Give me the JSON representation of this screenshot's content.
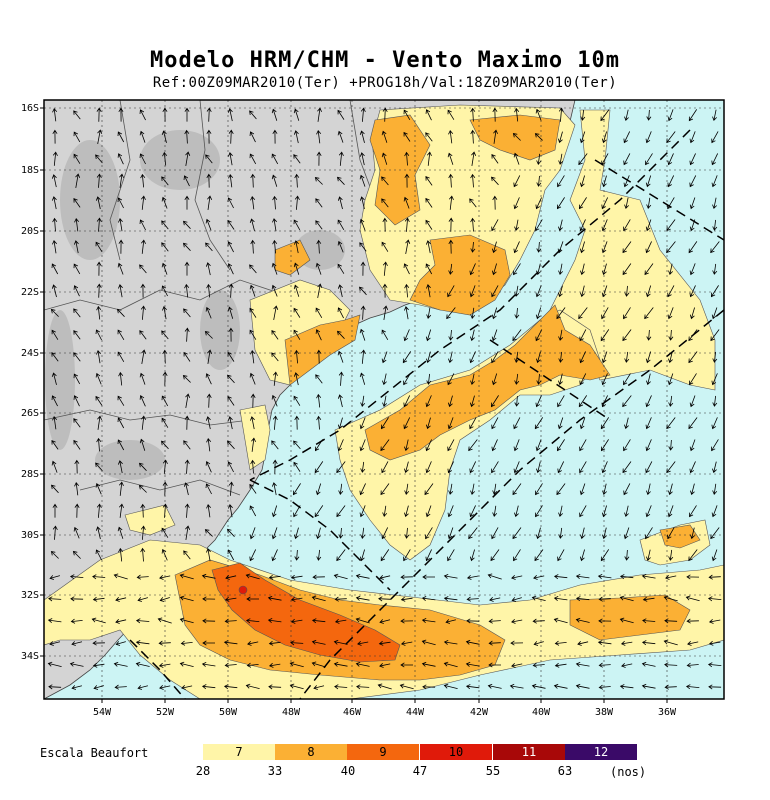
{
  "title": "Modelo HRM/CHM - Vento Maximo 10m",
  "subtitle": "Ref:00Z09MAR2010(Ter) +PROG18h/Val:18Z09MAR2010(Ter)",
  "lat_labels": [
    "16S",
    "18S",
    "20S",
    "22S",
    "24S",
    "26S",
    "28S",
    "30S",
    "32S",
    "34S"
  ],
  "lon_labels": [
    "54W",
    "52W",
    "50W",
    "48W",
    "46W",
    "44W",
    "42W",
    "40W",
    "38W",
    "36W"
  ],
  "legend": {
    "title": "Escala Beaufort",
    "units": "(nos)",
    "classes": [
      {
        "label": "7",
        "color": "#fff5a8"
      },
      {
        "label": "8",
        "color": "#fbb034"
      },
      {
        "label": "9",
        "color": "#f4670e"
      },
      {
        "label": "10",
        "color": "#e01a0a"
      },
      {
        "label": "11",
        "color": "#a80808"
      },
      {
        "label": "12",
        "color": "#3a0a68"
      }
    ],
    "ticks": [
      "28",
      "33",
      "40",
      "47",
      "55",
      "63"
    ]
  },
  "colors": {
    "ocean": "#ccf4f4",
    "land": "#d4d4d4",
    "land_dark": "#bbbbbb"
  }
}
